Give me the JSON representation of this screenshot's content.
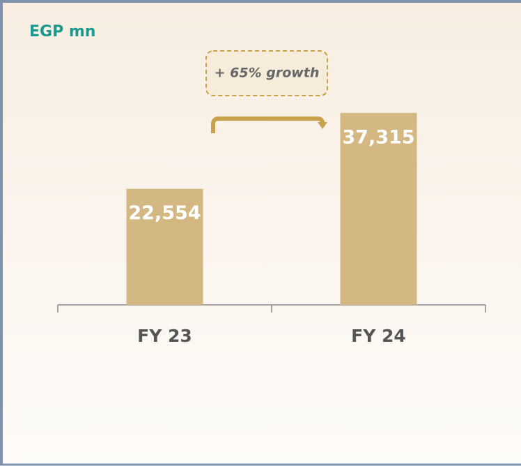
{
  "chart_data": {
    "type": "bar",
    "title": "EGP mn",
    "annotation": "+ 65% growth",
    "categories": [
      "FY 23",
      "FY 24"
    ],
    "values": [
      22554,
      37315
    ],
    "value_labels": [
      "22,554",
      "37,315"
    ],
    "color": "#d4b883",
    "ylim": [
      0,
      40000
    ]
  }
}
